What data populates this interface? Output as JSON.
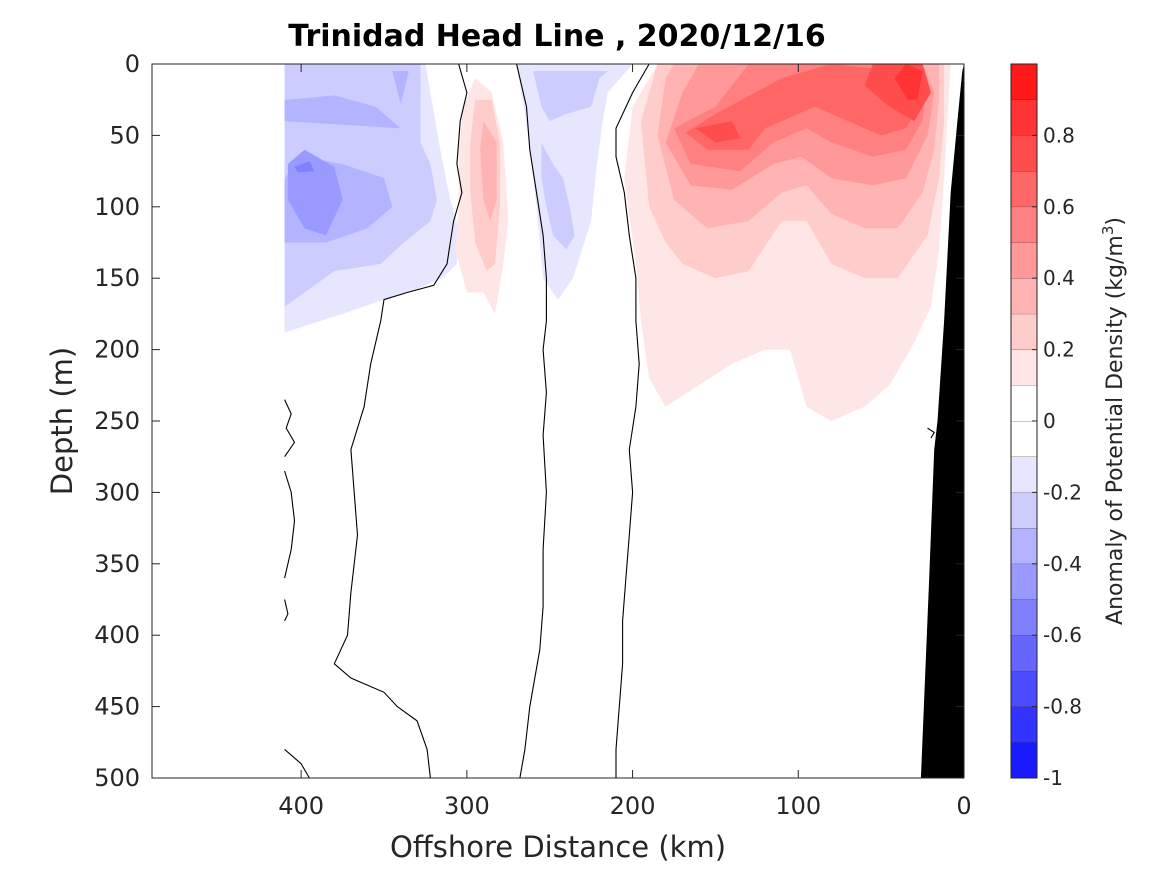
{
  "chart_data": {
    "type": "contour",
    "title": "Trinidad Head Line , 2020/12/16",
    "xlabel": "Offshore Distance (km)",
    "ylabel": "Depth (m)",
    "xlim": [
      490,
      0
    ],
    "ylim": [
      500,
      0
    ],
    "x_direction": "reversed",
    "y_direction": "reversed (depth increases downward)",
    "x_ticks": [
      400,
      300,
      200,
      100,
      0
    ],
    "x_tick_labels": [
      "400",
      "300",
      "200",
      "100",
      "0"
    ],
    "y_ticks": [
      0,
      50,
      100,
      150,
      200,
      250,
      300,
      350,
      400,
      450,
      500
    ],
    "y_tick_labels": [
      "0",
      "50",
      "100",
      "150",
      "200",
      "250",
      "300",
      "350",
      "400",
      "450",
      "500"
    ],
    "colorbar": {
      "label_main": "Anomaly of Potential Density (kg/m",
      "label_superscript": "3",
      "label_close": ")",
      "range": [
        -1,
        1
      ],
      "level_step": 0.1,
      "ticks": [
        -1,
        -0.8,
        -0.6,
        -0.4,
        -0.2,
        0,
        0.2,
        0.4,
        0.6,
        0.8
      ],
      "tick_labels": [
        "-1",
        "-0.8",
        "-0.6",
        "-0.4",
        "-0.2",
        "0",
        "0.2",
        "0.4",
        "0.6",
        "0.8"
      ],
      "negative_color": "#0000ff",
      "positive_color": "#ff0000",
      "neutral_color": "#ffffff"
    },
    "colors": {
      "bathymetry": "#000000",
      "zero_contour": "#000000"
    },
    "anomaly_regions": [
      {
        "level": -0.1,
        "points": [
          [
            410,
            0
          ],
          [
            325,
            0
          ],
          [
            322,
            20
          ],
          [
            316,
            60
          ],
          [
            310,
            95
          ],
          [
            305,
            115
          ],
          [
            306,
            140
          ],
          [
            315,
            150
          ],
          [
            335,
            160
          ],
          [
            350,
            165
          ],
          [
            375,
            175
          ],
          [
            410,
            188
          ]
        ]
      },
      {
        "level": -0.2,
        "points": [
          [
            410,
            0
          ],
          [
            328,
            0
          ],
          [
            328,
            55
          ],
          [
            322,
            70
          ],
          [
            318,
            95
          ],
          [
            322,
            110
          ],
          [
            338,
            125
          ],
          [
            352,
            140
          ],
          [
            380,
            145
          ],
          [
            410,
            170
          ]
        ]
      },
      {
        "level": -0.3,
        "points": [
          [
            410,
            40
          ],
          [
            340,
            45
          ],
          [
            355,
            30
          ],
          [
            380,
            22
          ],
          [
            408,
            25
          ],
          [
            410,
            25
          ]
        ]
      },
      {
        "level": -0.3,
        "points": [
          [
            345,
            5
          ],
          [
            340,
            28
          ],
          [
            335,
            5
          ]
        ]
      },
      {
        "level": -0.3,
        "points": [
          [
            410,
            80
          ],
          [
            400,
            65
          ],
          [
            375,
            70
          ],
          [
            350,
            80
          ],
          [
            345,
            100
          ],
          [
            360,
            115
          ],
          [
            385,
            125
          ],
          [
            410,
            125
          ]
        ]
      },
      {
        "level": -0.4,
        "points": [
          [
            408,
            70
          ],
          [
            398,
            60
          ],
          [
            380,
            72
          ],
          [
            375,
            95
          ],
          [
            385,
            120
          ],
          [
            398,
            115
          ],
          [
            408,
            95
          ]
        ]
      },
      {
        "level": -0.5,
        "points": [
          [
            404,
            72
          ],
          [
            395,
            68
          ],
          [
            392,
            75
          ],
          [
            402,
            76
          ]
        ]
      },
      {
        "level": -0.1,
        "points": [
          [
            270,
            0
          ],
          [
            265,
            35
          ],
          [
            262,
            60
          ],
          [
            258,
            100
          ],
          [
            254,
            150
          ],
          [
            245,
            165
          ],
          [
            236,
            150
          ],
          [
            225,
            110
          ],
          [
            222,
            75
          ],
          [
            218,
            40
          ],
          [
            215,
            20
          ],
          [
            200,
            0
          ]
        ]
      },
      {
        "level": -0.2,
        "points": [
          [
            260,
            5
          ],
          [
            255,
            30
          ],
          [
            250,
            40
          ],
          [
            240,
            35
          ],
          [
            225,
            30
          ],
          [
            220,
            10
          ],
          [
            215,
            5
          ]
        ]
      },
      {
        "level": -0.2,
        "points": [
          [
            255,
            55
          ],
          [
            248,
            70
          ],
          [
            242,
            80
          ],
          [
            238,
            100
          ],
          [
            235,
            120
          ],
          [
            240,
            130
          ],
          [
            248,
            120
          ],
          [
            252,
            100
          ],
          [
            255,
            80
          ]
        ]
      },
      {
        "level": -0.1,
        "points": [
          [
            270,
            0
          ],
          [
            225,
            0
          ]
        ]
      },
      {
        "level": 0.1,
        "points": [
          [
            300,
            160
          ],
          [
            290,
            160
          ],
          [
            283,
            175
          ],
          [
            278,
            140
          ],
          [
            275,
            110
          ],
          [
            278,
            55
          ],
          [
            285,
            20
          ],
          [
            295,
            10
          ],
          [
            302,
            30
          ],
          [
            305,
            60
          ],
          [
            305,
            100
          ],
          [
            307,
            130
          ]
        ]
      },
      {
        "level": 0.2,
        "points": [
          [
            295,
            25
          ],
          [
            285,
            25
          ],
          [
            280,
            55
          ],
          [
            280,
            100
          ],
          [
            283,
            140
          ],
          [
            288,
            145
          ],
          [
            295,
            125
          ],
          [
            298,
            90
          ],
          [
            298,
            55
          ]
        ]
      },
      {
        "level": 0.3,
        "points": [
          [
            290,
            40
          ],
          [
            282,
            55
          ],
          [
            282,
            95
          ],
          [
            286,
            110
          ],
          [
            290,
            95
          ],
          [
            292,
            60
          ]
        ]
      },
      {
        "level": 0.1,
        "points": [
          [
            185,
            0
          ],
          [
            200,
            30
          ],
          [
            205,
            80
          ],
          [
            198,
            140
          ],
          [
            195,
            180
          ],
          [
            190,
            220
          ],
          [
            180,
            240
          ],
          [
            160,
            225
          ],
          [
            140,
            210
          ],
          [
            120,
            200
          ],
          [
            105,
            200
          ],
          [
            95,
            240
          ],
          [
            80,
            250
          ],
          [
            60,
            240
          ],
          [
            45,
            225
          ],
          [
            30,
            195
          ],
          [
            20,
            170
          ],
          [
            15,
            130
          ],
          [
            12,
            80
          ],
          [
            10,
            40
          ],
          [
            8,
            0
          ]
        ]
      },
      {
        "level": 0.2,
        "points": [
          [
            185,
            0
          ],
          [
            195,
            40
          ],
          [
            190,
            100
          ],
          [
            180,
            125
          ],
          [
            170,
            140
          ],
          [
            150,
            150
          ],
          [
            130,
            145
          ],
          [
            110,
            110
          ],
          [
            95,
            110
          ],
          [
            80,
            140
          ],
          [
            60,
            150
          ],
          [
            40,
            150
          ],
          [
            22,
            120
          ],
          [
            15,
            80
          ],
          [
            12,
            40
          ],
          [
            12,
            0
          ]
        ]
      },
      {
        "level": 0.3,
        "points": [
          [
            180,
            10
          ],
          [
            185,
            50
          ],
          [
            175,
            95
          ],
          [
            155,
            115
          ],
          [
            130,
            110
          ],
          [
            110,
            90
          ],
          [
            95,
            85
          ],
          [
            80,
            105
          ],
          [
            60,
            115
          ],
          [
            40,
            115
          ],
          [
            25,
            90
          ],
          [
            18,
            60
          ],
          [
            15,
            25
          ],
          [
            15,
            0
          ],
          [
            175,
            0
          ]
        ]
      },
      {
        "level": 0.4,
        "points": [
          [
            170,
            20
          ],
          [
            180,
            55
          ],
          [
            165,
            85
          ],
          [
            140,
            88
          ],
          [
            115,
            70
          ],
          [
            98,
            65
          ],
          [
            80,
            80
          ],
          [
            55,
            85
          ],
          [
            35,
            80
          ],
          [
            22,
            50
          ],
          [
            18,
            20
          ],
          [
            25,
            0
          ],
          [
            160,
            0
          ]
        ]
      },
      {
        "level": 0.5,
        "points": [
          [
            150,
            30
          ],
          [
            175,
            45
          ],
          [
            165,
            70
          ],
          [
            135,
            75
          ],
          [
            115,
            55
          ],
          [
            95,
            45
          ],
          [
            80,
            55
          ],
          [
            55,
            65
          ],
          [
            35,
            60
          ],
          [
            25,
            40
          ],
          [
            22,
            10
          ],
          [
            50,
            0
          ],
          [
            130,
            0
          ]
        ]
      },
      {
        "level": 0.6,
        "points": [
          [
            150,
            35
          ],
          [
            168,
            48
          ],
          [
            155,
            60
          ],
          [
            130,
            60
          ],
          [
            120,
            45
          ],
          [
            90,
            30
          ],
          [
            70,
            40
          ],
          [
            50,
            50
          ],
          [
            35,
            45
          ],
          [
            25,
            25
          ],
          [
            40,
            5
          ],
          [
            80,
            0
          ],
          [
            110,
            10
          ]
        ]
      },
      {
        "level": 0.7,
        "points": [
          [
            140,
            40
          ],
          [
            162,
            45
          ],
          [
            150,
            55
          ],
          [
            135,
            52
          ]
        ]
      },
      {
        "level": 0.7,
        "points": [
          [
            60,
            15
          ],
          [
            45,
            30
          ],
          [
            30,
            40
          ],
          [
            20,
            20
          ],
          [
            25,
            0
          ],
          [
            55,
            0
          ]
        ]
      },
      {
        "level": 0.8,
        "points": [
          [
            42,
            10
          ],
          [
            34,
            25
          ],
          [
            28,
            25
          ],
          [
            25,
            5
          ],
          [
            35,
            0
          ]
        ]
      }
    ],
    "zero_contours": [
      [
        [
          410,
          235
        ],
        [
          406,
          245
        ],
        [
          409,
          255
        ],
        [
          404,
          265
        ],
        [
          410,
          275
        ]
      ],
      [
        [
          410,
          285
        ],
        [
          406,
          300
        ],
        [
          404,
          320
        ],
        [
          406,
          340
        ],
        [
          410,
          360
        ]
      ],
      [
        [
          410,
          375
        ],
        [
          408,
          385
        ],
        [
          410,
          390
        ]
      ],
      [
        [
          410,
          480
        ],
        [
          405,
          485
        ],
        [
          400,
          490
        ],
        [
          395,
          500
        ]
      ],
      [
        [
          305,
          0
        ],
        [
          300,
          20
        ],
        [
          304,
          40
        ],
        [
          306,
          70
        ],
        [
          303,
          90
        ],
        [
          308,
          110
        ],
        [
          312,
          140
        ],
        [
          320,
          155
        ],
        [
          336,
          160
        ],
        [
          350,
          165
        ],
        [
          352,
          180
        ],
        [
          358,
          210
        ],
        [
          362,
          240
        ],
        [
          370,
          270
        ],
        [
          368,
          300
        ],
        [
          366,
          330
        ],
        [
          370,
          370
        ],
        [
          372,
          400
        ],
        [
          380,
          420
        ],
        [
          370,
          430
        ],
        [
          350,
          440
        ],
        [
          342,
          450
        ],
        [
          330,
          460
        ],
        [
          324,
          480
        ],
        [
          322,
          500
        ]
      ],
      [
        [
          270,
          0
        ],
        [
          264,
          30
        ],
        [
          262,
          60
        ],
        [
          258,
          90
        ],
        [
          254,
          120
        ],
        [
          252,
          150
        ],
        [
          252,
          180
        ],
        [
          254,
          200
        ],
        [
          252,
          230
        ],
        [
          254,
          260
        ],
        [
          252,
          300
        ],
        [
          254,
          340
        ],
        [
          254,
          380
        ],
        [
          256,
          410
        ],
        [
          262,
          450
        ],
        [
          265,
          480
        ],
        [
          268,
          500
        ]
      ],
      [
        [
          190,
          0
        ],
        [
          200,
          20
        ],
        [
          210,
          45
        ],
        [
          210,
          65
        ],
        [
          205,
          90
        ],
        [
          202,
          120
        ],
        [
          198,
          150
        ],
        [
          198,
          180
        ],
        [
          196,
          210
        ],
        [
          198,
          240
        ],
        [
          202,
          270
        ],
        [
          200,
          300
        ],
        [
          202,
          330
        ],
        [
          204,
          360
        ],
        [
          206,
          390
        ],
        [
          206,
          420
        ],
        [
          208,
          450
        ],
        [
          210,
          480
        ],
        [
          210,
          500
        ]
      ],
      [
        [
          20,
          262
        ],
        [
          18,
          258
        ],
        [
          22,
          255
        ]
      ]
    ],
    "bathymetry_polygon": [
      [
        0,
        0
      ],
      [
        0,
        500
      ],
      [
        26,
        500
      ],
      [
        21,
        360
      ],
      [
        18,
        270
      ],
      [
        16,
        250
      ],
      [
        12,
        180
      ],
      [
        8,
        90
      ],
      [
        4,
        40
      ],
      [
        1,
        5
      ]
    ]
  }
}
